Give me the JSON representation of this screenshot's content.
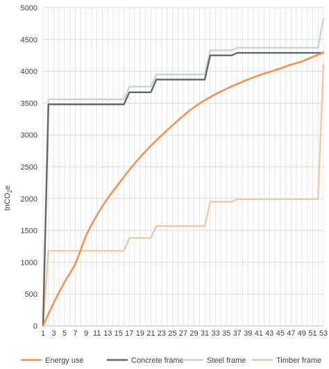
{
  "chart_data": {
    "type": "line",
    "ylabel_main": "tnCO",
    "ylabel_sub": "2",
    "ylabel_tail": "e",
    "xlim": [
      1,
      53
    ],
    "ylim": [
      0,
      5000
    ],
    "y_ticks": [
      0,
      500,
      1000,
      1500,
      2000,
      2500,
      3000,
      3500,
      4000,
      4500,
      5000
    ],
    "x_tick_labels": [
      1,
      3,
      5,
      7,
      9,
      11,
      13,
      15,
      17,
      19,
      21,
      23,
      25,
      27,
      29,
      31,
      33,
      35,
      37,
      39,
      41,
      43,
      45,
      47,
      49,
      51,
      53
    ],
    "grid": true,
    "legend_position": "bottom",
    "series": [
      {
        "name": "Energy use",
        "color": "#F4914F",
        "x": [
          1,
          3,
          5,
          7,
          9,
          11,
          13,
          15,
          17,
          19,
          21,
          23,
          25,
          27,
          29,
          31,
          33,
          35,
          37,
          39,
          41,
          43,
          45,
          47,
          49,
          51,
          53
        ],
        "y": [
          0,
          365,
          690,
          980,
          1420,
          1740,
          2005,
          2230,
          2450,
          2650,
          2830,
          2995,
          3150,
          3300,
          3435,
          3545,
          3640,
          3725,
          3800,
          3870,
          3935,
          3990,
          4045,
          4105,
          4155,
          4225,
          4295
        ]
      },
      {
        "name": "Concrete frame",
        "color": "#666666",
        "x": [
          1,
          2,
          2.3,
          16,
          17,
          21,
          22,
          31,
          32,
          36,
          37,
          52,
          53
        ],
        "y": [
          0,
          3480,
          3480,
          3480,
          3670,
          3670,
          3870,
          3870,
          4250,
          4250,
          4290,
          4290,
          4290
        ]
      },
      {
        "name": "Steel frame",
        "color": "#C6D3DE",
        "x": [
          1,
          2,
          2.3,
          16,
          17,
          21,
          22,
          31,
          32,
          36,
          37,
          52,
          53
        ],
        "y": [
          0,
          3560,
          3560,
          3560,
          3760,
          3760,
          3950,
          3950,
          4330,
          4330,
          4370,
          4370,
          4830
        ]
      },
      {
        "name": "Timber frame",
        "color": "#EFC8A8",
        "x": [
          1,
          2,
          2.3,
          16,
          17,
          21,
          22,
          31,
          32,
          36,
          37,
          52,
          53
        ],
        "y": [
          0,
          1180,
          1180,
          1180,
          1380,
          1380,
          1570,
          1570,
          1950,
          1950,
          1990,
          1990,
          4110
        ]
      }
    ]
  }
}
